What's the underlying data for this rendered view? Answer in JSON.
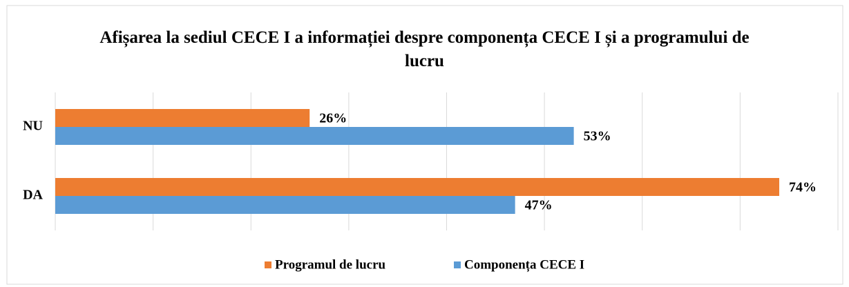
{
  "chart_data": {
    "type": "bar",
    "orientation": "horizontal",
    "title": "Afișarea la sediul CECE I a informației despre componența CECE I și a programului de lucru",
    "categories": [
      "NU",
      "DA"
    ],
    "series": [
      {
        "name": "Programul de lucru",
        "color": "#ed7d31",
        "values": [
          26,
          74
        ],
        "value_labels": [
          "26%",
          "74%"
        ]
      },
      {
        "name": "Componența CECE I",
        "color": "#5b9bd5",
        "values": [
          53,
          47
        ],
        "value_labels": [
          "53%",
          "47%"
        ]
      }
    ],
    "xlim": [
      0,
      80
    ],
    "xticks": [
      0,
      10,
      20,
      30,
      40,
      50,
      60,
      70,
      80
    ],
    "grid": true,
    "legend": "bottom"
  }
}
